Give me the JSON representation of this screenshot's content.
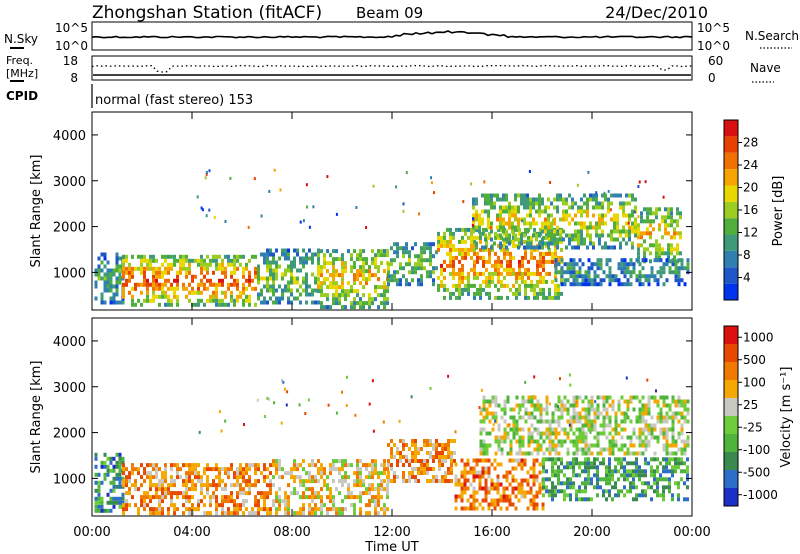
{
  "header": {
    "title": "Zhongshan Station (fitACF)",
    "beam": "Beam 09",
    "date": "24/Dec/2010"
  },
  "noise_panel": {
    "left_label": "N.Sky",
    "left_ticks": [
      "10^5",
      "10^0"
    ],
    "right_label": "N.Search",
    "right_ticks": [
      "10^5",
      "10^0"
    ]
  },
  "freq_panel": {
    "left_label_1": "Freq.",
    "left_label_2": "[MHz]",
    "left_ticks": [
      "18",
      "8"
    ],
    "right_label": "Nave",
    "right_ticks": [
      "60",
      "0"
    ]
  },
  "cpid": {
    "label": "CPID",
    "value": "normal (fast stereo) 153"
  },
  "chart_data": [
    {
      "type": "heatmap",
      "name": "power",
      "ylabel": "Slant Range [km]",
      "ylim": [
        180,
        4500
      ],
      "yticks": [
        "1000",
        "2000",
        "3000",
        "4000"
      ],
      "xlim": [
        0,
        24
      ],
      "colorbar": {
        "label": "Power [dB]",
        "ticks": [
          "4",
          "8",
          "12",
          "16",
          "20",
          "24",
          "28"
        ],
        "colors": [
          "#0033ee",
          "#1e56c8",
          "#2f7fb0",
          "#3f9a7a",
          "#4fae3c",
          "#9bcc20",
          "#e8d800",
          "#f5a400",
          "#f07000",
          "#e84000",
          "#d81010"
        ]
      },
      "regions": [
        {
          "t0": 0.1,
          "t1": 1.2,
          "r0": 300,
          "r1": 1400,
          "level": 0.35
        },
        {
          "t0": 1.2,
          "t1": 6.6,
          "r0": 250,
          "r1": 1300,
          "level": 0.78
        },
        {
          "t0": 6.6,
          "t1": 9.0,
          "r0": 300,
          "r1": 1450,
          "level": 0.45
        },
        {
          "t0": 9.0,
          "t1": 11.8,
          "r0": 200,
          "r1": 1500,
          "level": 0.6
        },
        {
          "t0": 11.8,
          "t1": 13.8,
          "r0": 700,
          "r1": 1600,
          "level": 0.42
        },
        {
          "t0": 13.8,
          "t1": 18.8,
          "r0": 400,
          "r1": 1900,
          "level": 0.72
        },
        {
          "t0": 15.2,
          "t1": 21.8,
          "r0": 1500,
          "r1": 2700,
          "level": 0.55
        },
        {
          "t0": 21.8,
          "t1": 23.6,
          "r0": 1200,
          "r1": 2400,
          "level": 0.6
        },
        {
          "t0": 18.5,
          "t1": 23.8,
          "r0": 700,
          "r1": 1300,
          "level": 0.3
        }
      ]
    },
    {
      "type": "heatmap",
      "name": "velocity",
      "ylabel": "Slant Range [km]",
      "ylim": [
        180,
        4500
      ],
      "yticks": [
        "1000",
        "2000",
        "3000",
        "4000"
      ],
      "xlim": [
        0,
        24
      ],
      "colorbar": {
        "label": "Velocity [m s⁻¹]",
        "ticks": [
          "1000",
          "500",
          "100",
          "25",
          "-25",
          "-100",
          "-500",
          "-1000"
        ],
        "colors": [
          "#1c30c8",
          "#2d6ec8",
          "#3a8a50",
          "#4fb43c",
          "#6ccc3a",
          "#c8c8c0",
          "#f5a800",
          "#f07a00",
          "#e84800",
          "#dd1010"
        ]
      },
      "regions": [
        {
          "t0": 0.1,
          "t1": 1.2,
          "r0": 250,
          "r1": 1500,
          "level": 0.25
        },
        {
          "t0": 1.2,
          "t1": 7.2,
          "r0": 200,
          "r1": 1300,
          "level": 0.72
        },
        {
          "t0": 7.2,
          "t1": 11.8,
          "r0": 200,
          "r1": 1400,
          "level": 0.6
        },
        {
          "t0": 11.8,
          "t1": 14.5,
          "r0": 900,
          "r1": 1800,
          "level": 0.7
        },
        {
          "t0": 14.5,
          "t1": 18.0,
          "r0": 300,
          "r1": 1400,
          "level": 0.75
        },
        {
          "t0": 15.5,
          "t1": 23.8,
          "r0": 1500,
          "r1": 2750,
          "level": 0.5
        },
        {
          "t0": 18.0,
          "t1": 23.8,
          "r0": 500,
          "r1": 1400,
          "level": 0.3
        }
      ]
    }
  ],
  "xaxis": {
    "ticks": [
      "00:00",
      "04:00",
      "08:00",
      "12:00",
      "16:00",
      "20:00",
      "00:00"
    ],
    "label": "Time UT"
  }
}
